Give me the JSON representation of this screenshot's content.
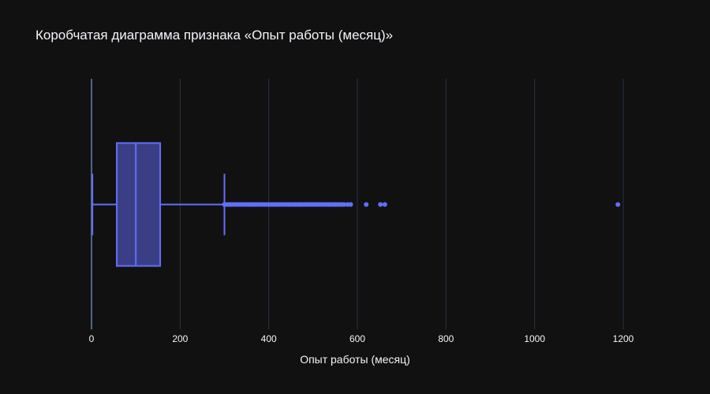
{
  "chart_data": {
    "type": "box",
    "title": "Коробчатая диаграмма признака «Опыт работы (месяц)»",
    "xlabel": "Опыт работы (месяц)",
    "ylabel": "",
    "xlim": [
      -10,
      1230
    ],
    "x_ticks": [
      0,
      200,
      400,
      600,
      800,
      1000,
      1200
    ],
    "x_tick_labels": [
      "0",
      "200",
      "400",
      "600",
      "800",
      "1000",
      "1200"
    ],
    "grid": true,
    "box": {
      "lower_fence": 2,
      "q1": 57,
      "median": 100,
      "q3": 155,
      "upper_fence": 300
    },
    "outliers": [
      300,
      305,
      310,
      315,
      320,
      325,
      330,
      335,
      340,
      345,
      350,
      355,
      360,
      365,
      370,
      375,
      380,
      385,
      390,
      395,
      400,
      405,
      410,
      415,
      420,
      425,
      430,
      435,
      440,
      445,
      450,
      455,
      460,
      465,
      470,
      475,
      480,
      485,
      490,
      495,
      500,
      505,
      510,
      515,
      520,
      525,
      530,
      535,
      540,
      545,
      550,
      555,
      560,
      565,
      570,
      578,
      585,
      620,
      652,
      662,
      1188
    ],
    "colors": {
      "series": "#636efa",
      "background": "#111111",
      "grid": "#283442",
      "text": "#f2f5fa"
    }
  }
}
